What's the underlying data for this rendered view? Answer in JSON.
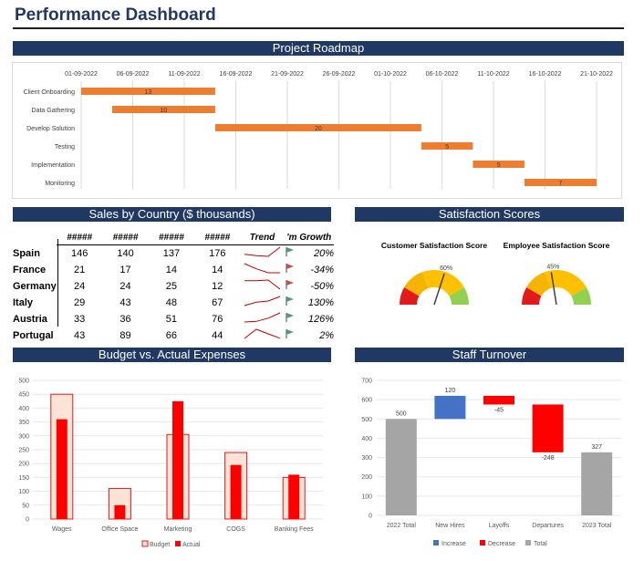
{
  "page": {
    "title": "Performance Dashboard"
  },
  "sections": {
    "roadmap": "Project Roadmap",
    "sales": "Sales by Country ($ thousands)",
    "satisfaction": "Satisfaction Scores",
    "budget": "Budget vs. Actual Expenses",
    "turnover": "Staff Turnover"
  },
  "roadmap": {
    "dates": [
      "01-09-2022",
      "06-09-2022",
      "11-09-2022",
      "16-09-2022",
      "21-09-2022",
      "26-09-2022",
      "01-10-2022",
      "06-10-2022",
      "11-10-2022",
      "16-10-2022",
      "21-10-2022"
    ],
    "tasks": [
      {
        "name": "Client Onboarding",
        "start_day": 0,
        "duration": 13,
        "label": "13"
      },
      {
        "name": "Data Gathering",
        "start_day": 3,
        "duration": 10,
        "label": "10"
      },
      {
        "name": "Develop Solution",
        "start_day": 13,
        "duration": 20,
        "label": "20"
      },
      {
        "name": "Testing",
        "start_day": 33,
        "duration": 5,
        "label": "5"
      },
      {
        "name": "Implementation",
        "start_day": 38,
        "duration": 5,
        "label": "5"
      },
      {
        "name": "Monitoring",
        "start_day": 43,
        "duration": 7,
        "label": "7"
      }
    ],
    "bar_color": "#ed7d31"
  },
  "sales": {
    "headers": [
      "#####",
      "#####",
      "#####",
      "#####",
      "Trend",
      "'m Growth"
    ],
    "rows": [
      {
        "country": "Spain",
        "values": [
          "146",
          "140",
          "137",
          "176"
        ],
        "trend": [
          146,
          140,
          137,
          176
        ],
        "growth": "20%",
        "dir": "up"
      },
      {
        "country": "France",
        "values": [
          "21",
          "17",
          "14",
          "14"
        ],
        "trend": [
          21,
          17,
          14,
          14
        ],
        "growth": "-34%",
        "dir": "down"
      },
      {
        "country": "Germany",
        "values": [
          "24",
          "24",
          "25",
          "12"
        ],
        "trend": [
          24,
          24,
          25,
          12
        ],
        "growth": "-50%",
        "dir": "down"
      },
      {
        "country": "Italy",
        "values": [
          "29",
          "43",
          "48",
          "67"
        ],
        "trend": [
          29,
          43,
          48,
          67
        ],
        "growth": "130%",
        "dir": "up"
      },
      {
        "country": "Austria",
        "values": [
          "33",
          "36",
          "51",
          "76"
        ],
        "trend": [
          33,
          36,
          51,
          76
        ],
        "growth": "126%",
        "dir": "up"
      },
      {
        "country": "Portugal",
        "values": [
          "43",
          "89",
          "66",
          "44"
        ],
        "trend": [
          43,
          89,
          66,
          44
        ],
        "growth": "2%",
        "dir": "up"
      }
    ],
    "up_color": "#4e9a7e",
    "down_color": "#c0504d"
  },
  "satisfaction": {
    "gauges": [
      {
        "title": "Customer Satisfaction Score",
        "value": 60,
        "label": "60%"
      },
      {
        "title": "Employee Satisfaction Score",
        "value": 45,
        "label": "45%"
      }
    ],
    "colors": [
      "#e31a1c",
      "#f4b400",
      "#ffc000",
      "#92d050"
    ]
  },
  "chart_data": [
    {
      "type": "bar",
      "title": "Budget vs. Actual Expenses",
      "categories": [
        "Wages",
        "Office Space",
        "Marketing",
        "COGS",
        "Banking Fees"
      ],
      "series": [
        {
          "name": "Budget",
          "values": [
            450,
            110,
            305,
            240,
            150
          ],
          "color": "#fbe4d5",
          "edge": "#e31a1c"
        },
        {
          "name": "Actual",
          "values": [
            360,
            50,
            425,
            195,
            160
          ],
          "color": "#ff0000"
        }
      ],
      "ylim": [
        0,
        500
      ],
      "yticks": [
        "0",
        "50",
        "100",
        "150",
        "200",
        "250",
        "300",
        "350",
        "400",
        "450",
        "500"
      ],
      "legend": "bottom"
    },
    {
      "type": "waterfall",
      "title": "Staff Turnover",
      "categories": [
        "2022 Total",
        "New Hires",
        "Layoffs",
        "Departures",
        "2023 Total"
      ],
      "values": [
        500,
        120,
        -45,
        -248,
        327
      ],
      "labels": [
        "500",
        "120",
        "-45",
        "-248",
        "327"
      ],
      "kinds": [
        "total",
        "increase",
        "decrease",
        "decrease",
        "total"
      ],
      "ylim": [
        0,
        700
      ],
      "yticks": [
        "0",
        "100",
        "200",
        "300",
        "400",
        "500",
        "600",
        "700"
      ],
      "legend_labels": [
        "Increase",
        "Decrease",
        "Total"
      ],
      "colors": {
        "increase": "#4472c4",
        "decrease": "#ff0000",
        "total": "#a5a5a5"
      }
    }
  ]
}
